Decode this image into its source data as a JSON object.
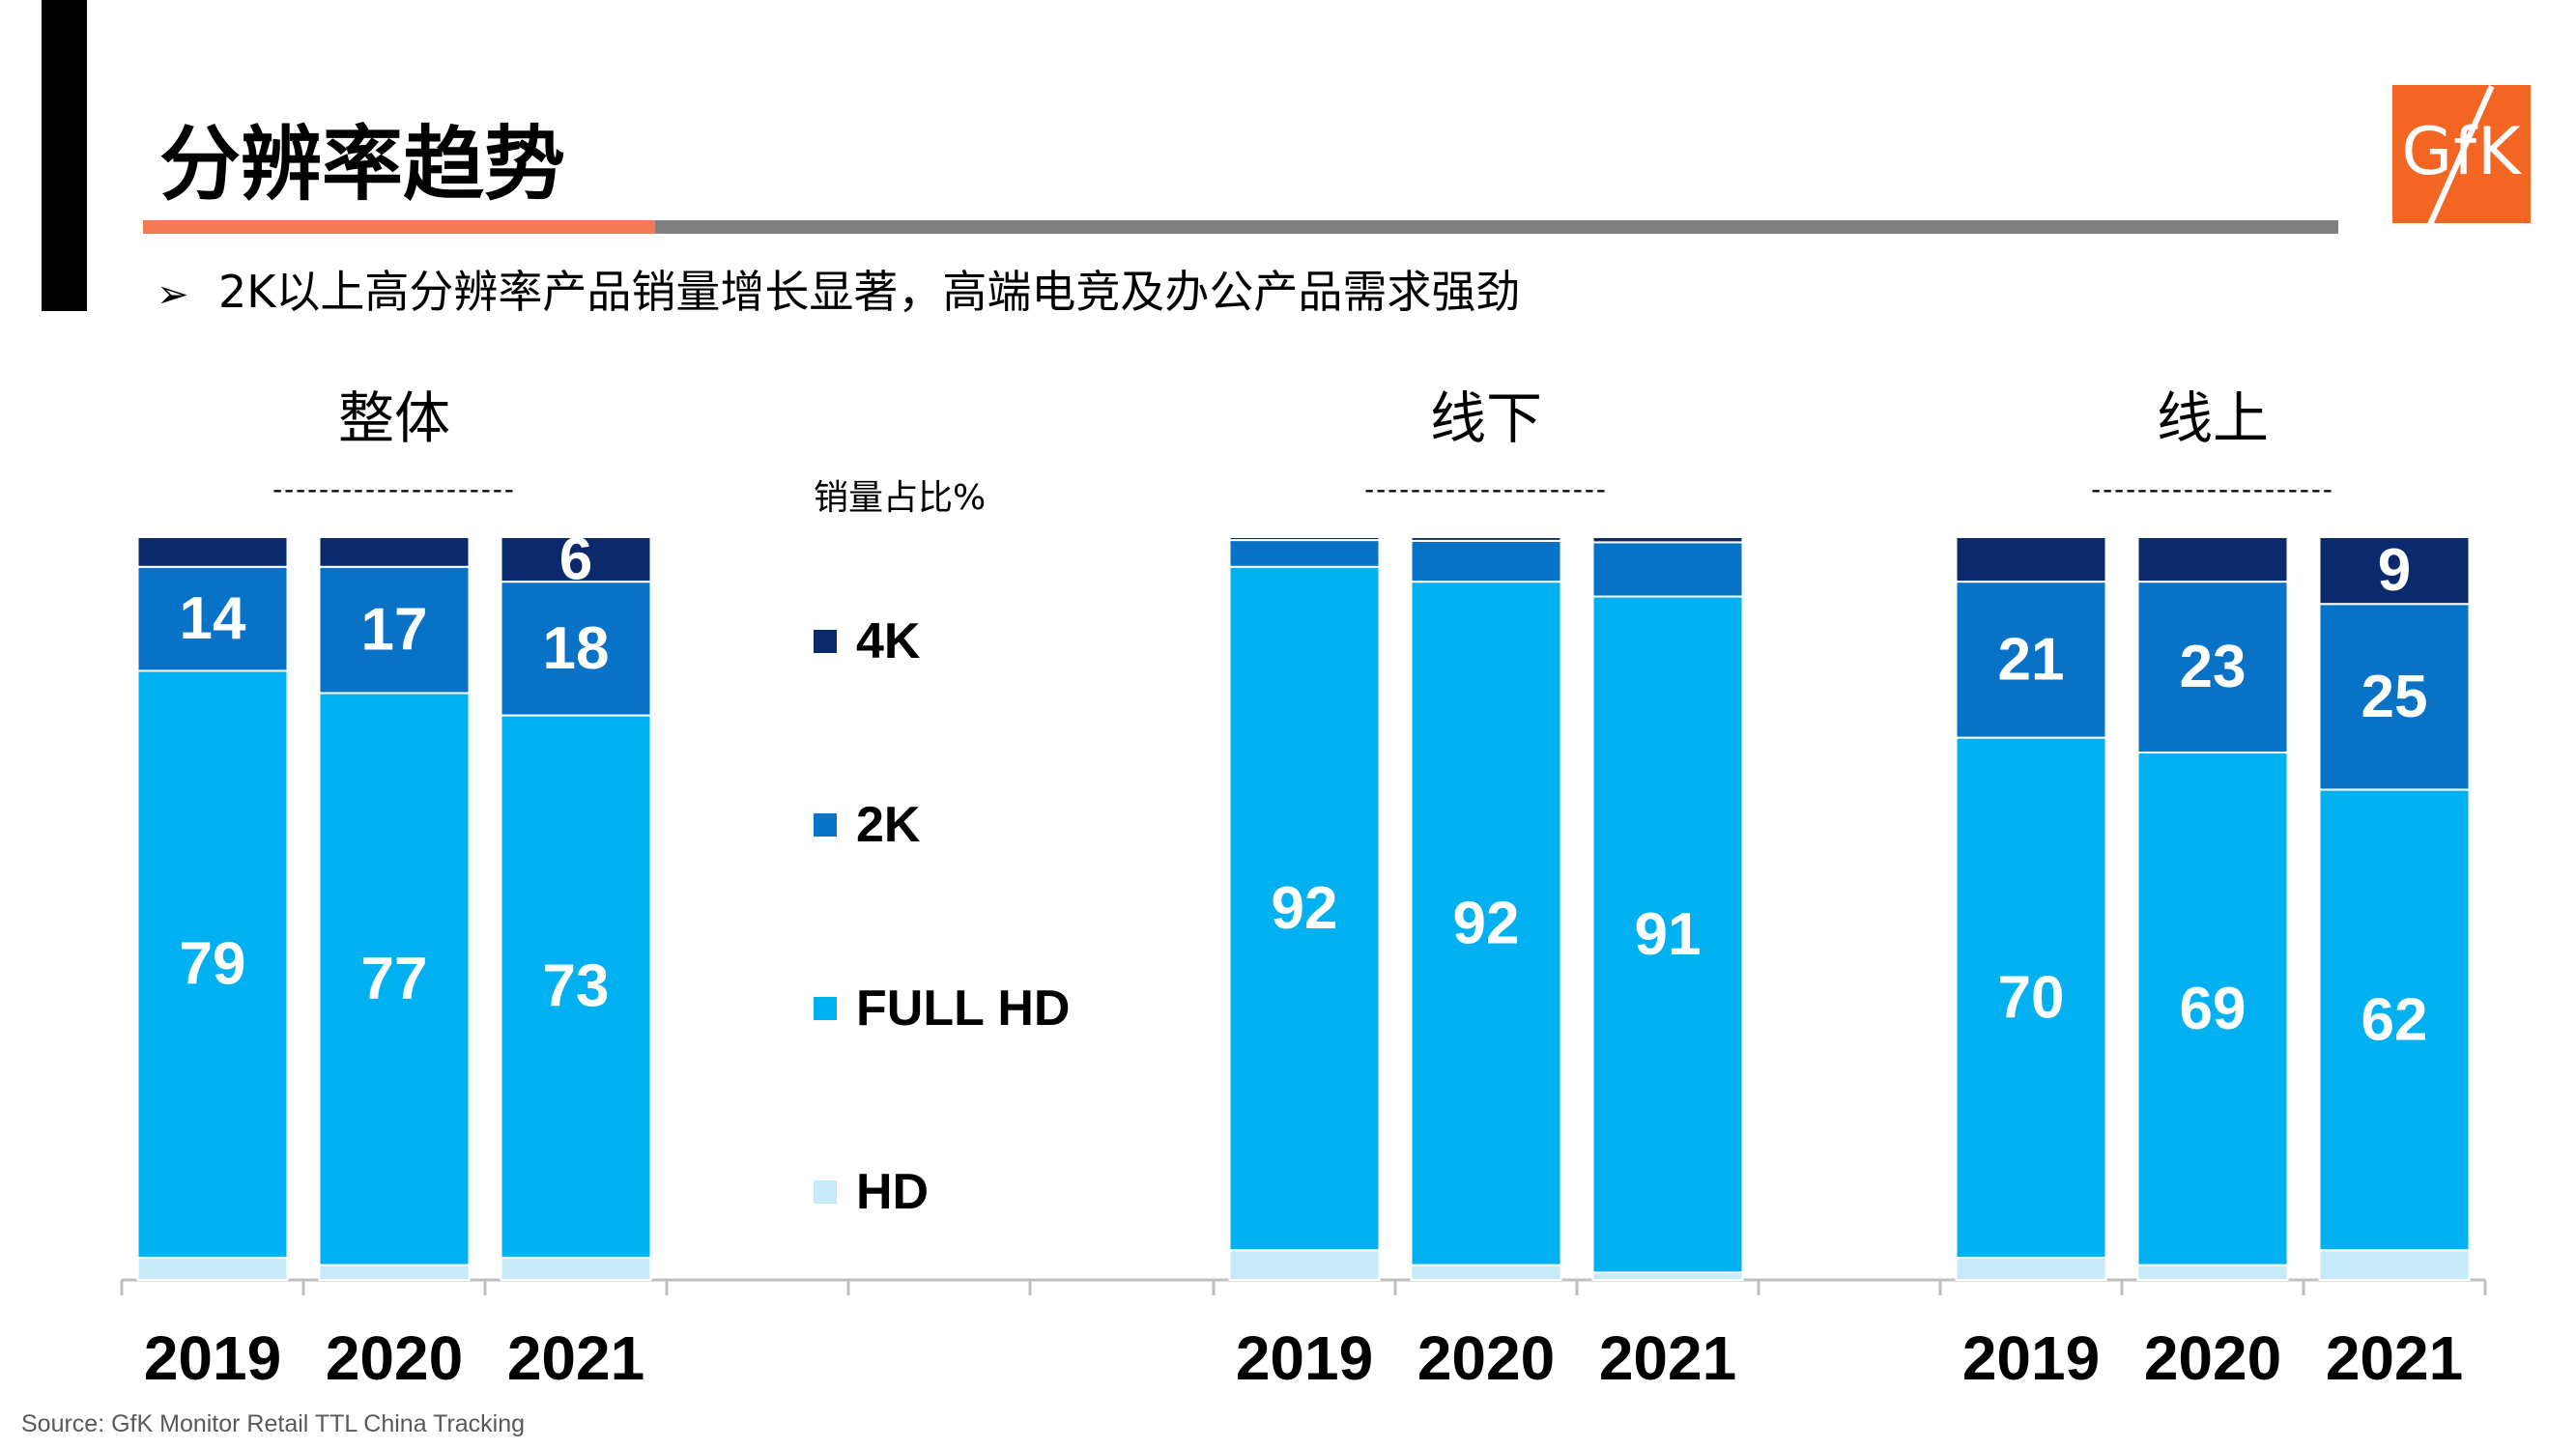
{
  "slide": {
    "title": "分辨率趋势",
    "bullet_mark": "➢",
    "bullet": "2K以上高分辨率产品销量增长显著，高端电竞及办公产品需求强劲",
    "source": "Source: GfK Monitor Retail TTL China Tracking",
    "logo_text": "GfK",
    "colors": {
      "accent_orange": "#F47A55",
      "rule_gray": "#808080",
      "logo_bg": "#F26522"
    }
  },
  "legend": {
    "title": "销量占比%"
  },
  "chart_data": {
    "type": "bar",
    "stacked": true,
    "unit": "%",
    "ylim": [
      0,
      100
    ],
    "grid": false,
    "legend_placement": "center",
    "series_order_bottom_to_top": [
      "HD",
      "FULL HD",
      "2K",
      "4K"
    ],
    "series_colors": {
      "4K": "#0B2A6E",
      "2K": "#0872C6",
      "FULL HD": "#00B0F0",
      "HD": "#C6EAF8"
    },
    "panels": [
      {
        "title": "整体",
        "dash": "---------------------",
        "categories": [
          "2019",
          "2020",
          "2021"
        ],
        "series": [
          {
            "name": "HD",
            "values": [
              3,
              2,
              3
            ]
          },
          {
            "name": "FULL HD",
            "values": [
              79,
              77,
              73
            ]
          },
          {
            "name": "2K",
            "values": [
              14,
              17,
              18
            ]
          },
          {
            "name": "4K",
            "values": [
              4,
              4,
              6
            ]
          }
        ],
        "labels": {
          "FULL HD": [
            "79",
            "77",
            "73"
          ],
          "2K": [
            "14",
            "17",
            "18"
          ],
          "4K": [
            "",
            "",
            "6"
          ]
        }
      },
      {
        "title": "线下",
        "dash": "---------------------",
        "categories": [
          "2019",
          "2020",
          "2021"
        ],
        "series": [
          {
            "name": "HD",
            "values": [
              4,
              2,
              1
            ]
          },
          {
            "name": "FULL HD",
            "values": [
              92,
              92,
              91
            ]
          },
          {
            "name": "2K",
            "values": [
              3.6,
              5.5,
              7.3
            ]
          },
          {
            "name": "4K",
            "values": [
              0.4,
              0.5,
              0.7
            ]
          }
        ],
        "labels": {
          "FULL HD": [
            "92",
            "92",
            "91"
          ],
          "2K": [
            "",
            "",
            ""
          ],
          "4K": [
            "",
            "",
            ""
          ]
        }
      },
      {
        "title": "线上",
        "dash": "---------------------",
        "categories": [
          "2019",
          "2020",
          "2021"
        ],
        "series": [
          {
            "name": "HD",
            "values": [
              3,
              2,
              4
            ]
          },
          {
            "name": "FULL HD",
            "values": [
              70,
              69,
              62
            ]
          },
          {
            "name": "2K",
            "values": [
              21,
              23,
              25
            ]
          },
          {
            "name": "4K",
            "values": [
              6,
              6,
              9
            ]
          }
        ],
        "labels": {
          "FULL HD": [
            "70",
            "69",
            "62"
          ],
          "2K": [
            "21",
            "23",
            "25"
          ],
          "4K": [
            "",
            "",
            "9"
          ]
        }
      }
    ]
  }
}
